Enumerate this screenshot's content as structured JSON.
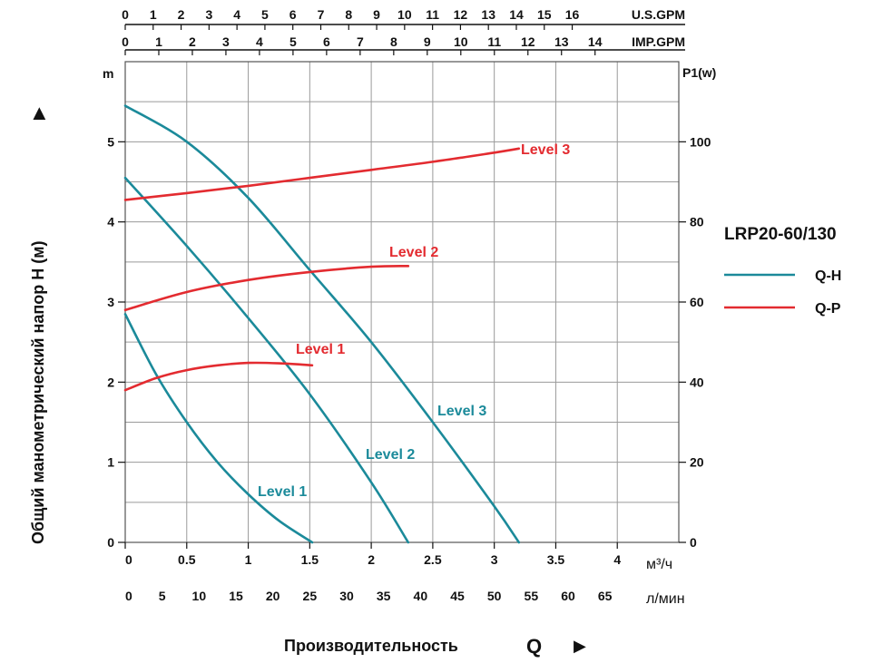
{
  "chart_data": {
    "type": "line",
    "model": "LRP20-60/130",
    "ylabel_left": "Общий манометрический напор H (м)",
    "ylabel_left_unit": "m",
    "ylabel_right": "P1(w)",
    "xlabel": "Производительность",
    "xlabel_symbol": "Q",
    "arrow_glyph": "▶",
    "x_m3h": {
      "unit": "м³/ч",
      "ticks": [
        "0",
        "0.5",
        "1",
        "1.5",
        "2",
        "2.5",
        "3",
        "3.5",
        "4"
      ],
      "range": [
        0,
        4.5
      ]
    },
    "x_lmin": {
      "unit": "л/мин",
      "ticks": [
        "0",
        "5",
        "10",
        "15",
        "20",
        "25",
        "30",
        "35",
        "40",
        "45",
        "50",
        "55",
        "60",
        "65"
      ]
    },
    "x_usgpm": {
      "unit": "U.S.GPM",
      "ticks": [
        "0",
        "1",
        "2",
        "3",
        "4",
        "5",
        "6",
        "7",
        "8",
        "9",
        "10",
        "11",
        "12",
        "13",
        "14",
        "15",
        "16"
      ]
    },
    "x_impgpm": {
      "unit": "IMP.GPM",
      "ticks": [
        "0",
        "1",
        "2",
        "3",
        "4",
        "5",
        "6",
        "7",
        "8",
        "9",
        "10",
        "11",
        "12",
        "13",
        "14"
      ]
    },
    "y_head": {
      "ticks": [
        "0",
        "1",
        "2",
        "3",
        "4",
        "5"
      ],
      "range": [
        0,
        6
      ]
    },
    "y_power": {
      "ticks": [
        "0",
        "20",
        "40",
        "60",
        "80",
        "100"
      ],
      "range": [
        0,
        120
      ]
    },
    "legend": [
      {
        "name": "Q-H",
        "color": "#1b8a9a"
      },
      {
        "name": "Q-P",
        "color": "#e32b30"
      }
    ],
    "series": [
      {
        "name": "Q-H",
        "label": "Level 1",
        "x": [
          0,
          0.25,
          0.5,
          0.75,
          1.0,
          1.25,
          1.52
        ],
        "y": [
          2.85,
          2.1,
          1.5,
          1.0,
          0.6,
          0.27,
          0
        ]
      },
      {
        "name": "Q-H",
        "label": "Level 2",
        "x": [
          0,
          0.5,
          1.0,
          1.5,
          2.0,
          2.3
        ],
        "y": [
          4.55,
          3.7,
          2.8,
          1.85,
          0.75,
          0
        ]
      },
      {
        "name": "Q-H",
        "label": "Level 3",
        "x": [
          0,
          0.5,
          1.0,
          1.5,
          2.0,
          2.5,
          3.0,
          3.2
        ],
        "y": [
          5.45,
          5.0,
          4.3,
          3.4,
          2.5,
          1.5,
          0.45,
          0
        ]
      },
      {
        "name": "Q-P",
        "label": "Level 1",
        "x": [
          0,
          0.25,
          0.5,
          0.75,
          1.0,
          1.25,
          1.52
        ],
        "y": [
          38,
          41,
          43,
          44.2,
          44.8,
          44.7,
          44.2
        ]
      },
      {
        "name": "Q-P",
        "label": "Level 2",
        "x": [
          0,
          0.5,
          1.0,
          1.5,
          2.0,
          2.3
        ],
        "y": [
          58,
          62.5,
          65.5,
          67.5,
          68.8,
          69
        ]
      },
      {
        "name": "Q-P",
        "label": "Level 3",
        "x": [
          0,
          0.5,
          1.0,
          1.5,
          2.0,
          2.5,
          3.0,
          3.2
        ],
        "y": [
          85.5,
          87.2,
          89,
          91,
          93,
          95,
          97.3,
          98.3
        ]
      }
    ]
  }
}
